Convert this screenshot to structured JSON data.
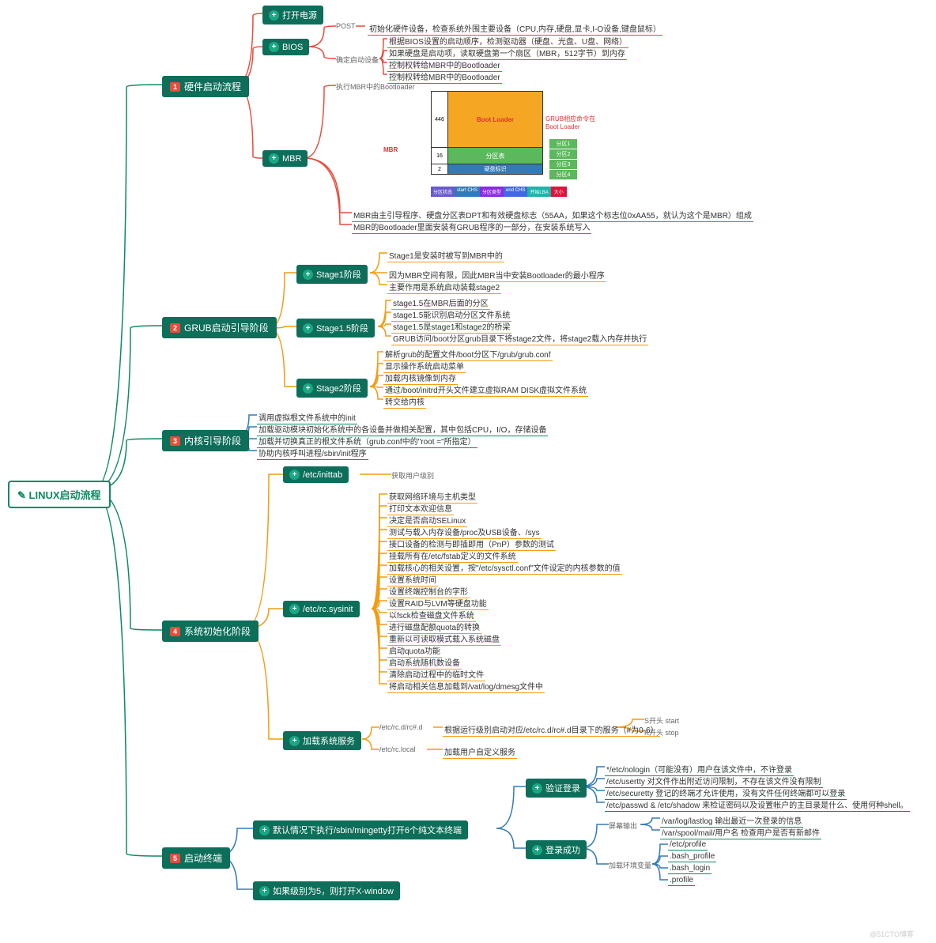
{
  "root": "LINUX启动流程",
  "lvl1": [
    {
      "n": "1",
      "t": "硬件启动流程"
    },
    {
      "n": "2",
      "t": "GRUB启动引导阶段"
    },
    {
      "n": "3",
      "t": "内核引导阶段"
    },
    {
      "n": "4",
      "t": "系统初始化阶段"
    },
    {
      "n": "5",
      "t": "启动终端"
    }
  ],
  "hw": {
    "sub": [
      "打开电源",
      "BIOS",
      "MBR"
    ],
    "bios": {
      "h": [
        "POST",
        "确定启动设备"
      ],
      "l": [
        "初始化硬件设备，检查系统外围主要设备（CPU,内存,硬盘,显卡,I-O设备,键盘鼠标）",
        "根据BIOS设置的启动顺序，检测驱动器（硬盘、光盘、U盘、网络）",
        "如果硬盘是启动项，读取硬盘第一个扇区（MBR，512字节）到内存",
        "控制权转给MBR中的Bootloader"
      ]
    },
    "mbr": {
      "h": "执行MBR中的Bootloader",
      "l": [
        "MBR由主引导程序、硬盘分区表DPT和有效硬盘标志（55AA，如果这个标志位0xAA55，就认为这个是MBR）组成",
        "MBR的Bootloader里面安装有GRUB程序的一部分，在安装系统写入"
      ],
      "diag": {
        "label": "MBR",
        "bytes": [
          "446",
          "16",
          "2"
        ],
        "parts": [
          "Boot Loader",
          "分区表",
          "硬盘标识"
        ],
        "side": "GRUB相应命令在Boot Loader",
        "slots": [
          "分区1",
          "分区2",
          "分区3",
          "分区4"
        ],
        "bottom": [
          "分区状态",
          "start CHS",
          "分区类型",
          "end CHS",
          "开始LBA",
          "大小"
        ],
        "colors": {
          "boot": "#f5a623",
          "part": "#5cb85c",
          "sig": "#337ab7",
          "slot": "#5cb85c",
          "b1": "#6a5acd",
          "b2": "#337ab7",
          "b3": "#8a2be2",
          "b4": "#4169e1",
          "b5": "#20b2aa",
          "b6": "#dc143c",
          "border": "#333"
        }
      }
    }
  },
  "grub": {
    "sub": [
      "Stage1阶段",
      "Stage1.5阶段",
      "Stage2阶段"
    ],
    "s1": [
      "Stage1是安装时被写到MBR中的",
      "因为MBR空间有限，因此MBR当中安装Bootloader的最小程序",
      "主要作用是系统启动装载stage2"
    ],
    "s15": [
      "stage1.5在MBR后面的分区",
      "stage1.5能识别启动分区文件系统",
      "stage1.5是stage1和stage2的桥梁",
      "GRUB访问/boot分区grub目录下将stage2文件，将stage2载入内存并执行"
    ],
    "s2": [
      "解析grub的配置文件/boot分区下/grub/grub.conf",
      "显示操作系统启动菜单",
      "加载内核镜像到内存",
      "通过/boot/initrd开头文件建立虚拟RAM DISK虚拟文件系统",
      "转交给内核"
    ]
  },
  "kernel": [
    "调用虚拟根文件系统中的init",
    "加载驱动模块初始化系统中的各设备并做相关配置，其中包括CPU，I/O，存储设备",
    "加载并切换真正的根文件系统（grub.conf中的\"root =\"所指定）",
    "协助内核呼叫进程/sbin/init程序"
  ],
  "sysinit": {
    "sub": [
      "/etc/inittab",
      "/etc/rc.sysinit",
      "加载系统服务"
    ],
    "inittab": "获取用户级别",
    "rc": [
      "获取网络环境与主机类型",
      "打印文本欢迎信息",
      "决定是否启动SELinux",
      "测试与载入内存设备/proc及USB设备、/sys",
      "接口设备的检测与即插即用（PnP）参数的测试",
      "挂载所有在/etc/fstab定义的文件系统",
      "加载核心的相关设置，按\"/etc/sysctl.conf\"文件设定的内核参数的值",
      "设置系统时间",
      "设置终端控制台的字形",
      "设置RAID与LVM等硬盘功能",
      "以fsck检查磁盘文件系统",
      "进行磁盘配额quota的转换",
      "重新以可读取模式载入系统磁盘",
      "启动quota功能",
      "启动系统随机数设备",
      "清除启动过程中的临时文件",
      "将启动相关信息加载到/vat/log/dmesg文件中"
    ],
    "svc": {
      "h": [
        "/etc/rc.d/rc#.d",
        "/etc/rc.local"
      ],
      "l": [
        "根据运行级别启动对应/etc/rc.d/rc#.d目录下的服务（#为0-6）",
        "加载用户自定义服务"
      ],
      "ext": [
        "S开头 start",
        "K开头 stop"
      ]
    }
  },
  "term": {
    "sub": [
      "默认情况下执行/sbin/mingetty打开6个纯文本终端",
      "如果级别为5，则打开X-window"
    ],
    "sub2": [
      "验证登录",
      "登录成功"
    ],
    "verify": [
      "*/etc/nologin（可能没有）用户在该文件中，不许登录",
      "/etc/usertty 对文件作出附近访问限制，不存在该文件没有限制",
      "/etc/securetty 登记的终端才允许使用，没有文件任何终端都可以登录",
      "/etc/passwd & /etc/shadow 来检证密码以及设置帐户的主目录是什么、使用何种shell。"
    ],
    "success": {
      "h": [
        "屏幕输出",
        "加载环境变量"
      ],
      "out": [
        "/var/log/lastlog 输出最近一次登录的信息",
        "/var/spool/mail/用户名 检查用户是否有新邮件"
      ],
      "env": [
        "/etc/profile",
        ".bash_profile",
        ".bash_login",
        ".profile"
      ]
    }
  },
  "linecolors": {
    "root": "#0d8a5f",
    "l1_1": "#e74c3c",
    "l1_2": "#f39c12",
    "l1_3": "#3498db",
    "l1_4": "#f39c12",
    "l1_5": "#3498db"
  },
  "watermark": "@51CTO博客"
}
